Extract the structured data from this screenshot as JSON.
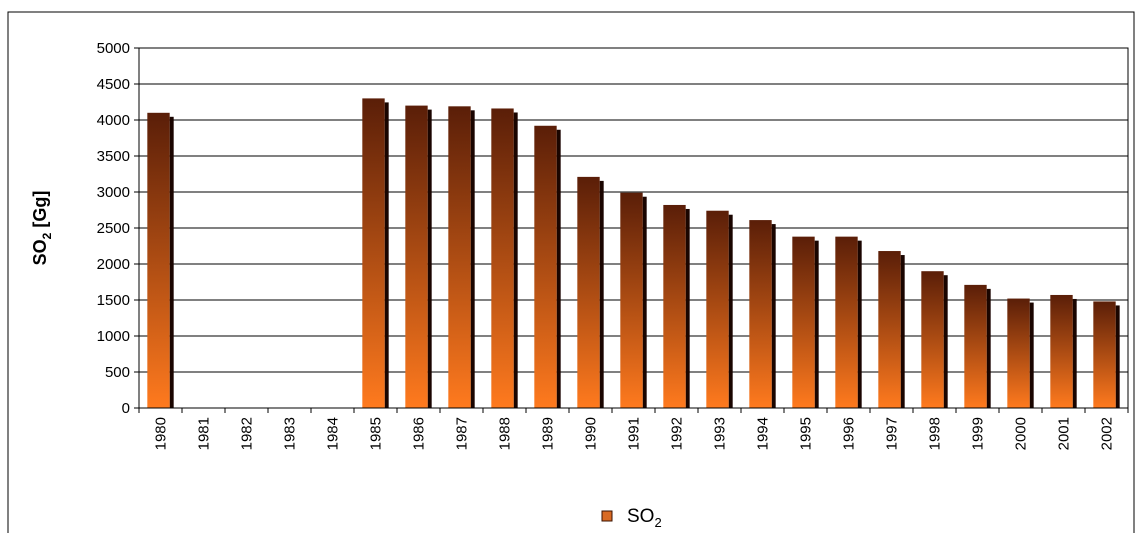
{
  "chart_data": {
    "type": "bar",
    "categories": [
      "1980",
      "1981",
      "1982",
      "1983",
      "1984",
      "1985",
      "1986",
      "1987",
      "1988",
      "1989",
      "1990",
      "1991",
      "1992",
      "1993",
      "1994",
      "1995",
      "1996",
      "1997",
      "1998",
      "1999",
      "2000",
      "2001",
      "2002"
    ],
    "series": [
      {
        "name": "SO2",
        "values": [
          4100,
          null,
          null,
          null,
          null,
          4300,
          4200,
          4190,
          4160,
          3920,
          3210,
          2990,
          2820,
          2740,
          2610,
          2380,
          2380,
          2180,
          1900,
          1710,
          1520,
          1570,
          1480
        ]
      }
    ],
    "ylabel": "SO2 [Gg]",
    "ylim": [
      0,
      5000
    ],
    "yticks": [
      "0",
      "500",
      "1000",
      "1500",
      "2000",
      "2500",
      "3000",
      "3500",
      "4000",
      "4500",
      "5000"
    ],
    "grid": true,
    "legend": "bottom-center",
    "colors": {
      "bar_top": "#5a1e08",
      "bar_bottom": "#ff7a1e",
      "bar_side": "#1a0500"
    }
  }
}
